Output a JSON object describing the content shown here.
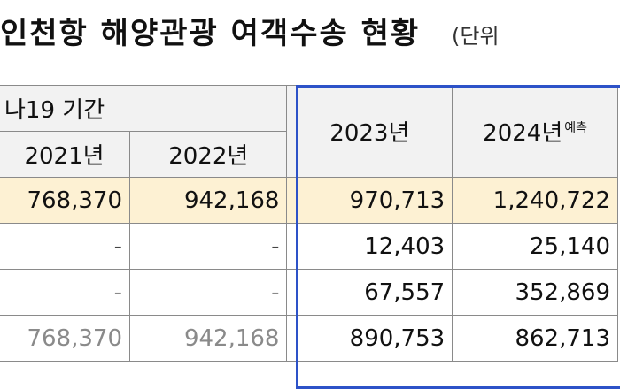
{
  "title": "인천항 해양관광 여객수송 현황",
  "unit_label": "(단위",
  "header": {
    "covid_label": "나19 기간",
    "col_2021": "2021년",
    "col_2022": "2022년",
    "col_2023": "2023년",
    "col_2024": "2024년",
    "col_2024_note": "예측"
  },
  "rows": [
    {
      "c2021": "768,370",
      "c2022": "942,168",
      "c2023": "970,713",
      "c2024": "1,240,722"
    },
    {
      "c2021": "-",
      "c2022": "-",
      "c2023": "12,403",
      "c2024": "25,140"
    },
    {
      "c2021": "-",
      "c2022": "-",
      "c2023": "67,557",
      "c2024": "352,869"
    },
    {
      "c2021": "768,370",
      "c2022": "942,168",
      "c2023": "890,753",
      "c2024": "862,713"
    }
  ],
  "colors": {
    "highlight_row": "#fdf1d3",
    "blue_border": "#2d52c8",
    "header_bg": "#f2f2f2"
  }
}
